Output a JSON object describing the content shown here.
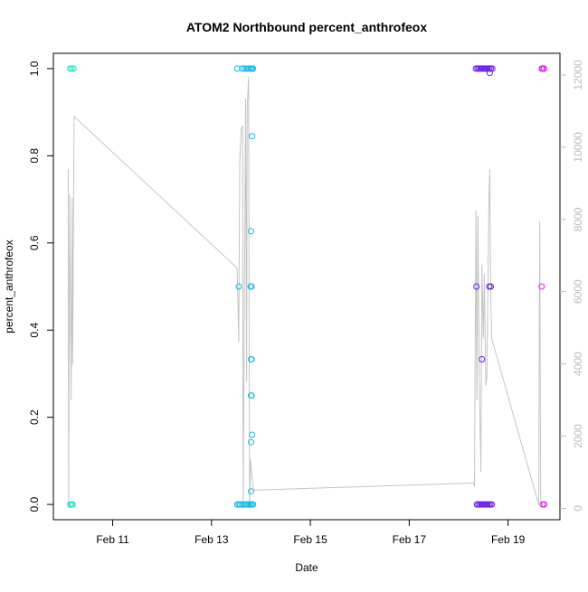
{
  "chart_data": {
    "type": "scatter",
    "title": "ATOM2 Northbound percent_anthrofeox",
    "xlabel": "Date",
    "ylabel": "percent_anthrofeox",
    "y2label": "",
    "x_ticks": [
      "Feb 11",
      "Feb 13",
      "Feb 15",
      "Feb 17",
      "Feb 19"
    ],
    "x_tick_values": [
      11,
      13,
      15,
      17,
      19
    ],
    "xlim": [
      9.8,
      20.05
    ],
    "ylim": [
      -0.035,
      1.035
    ],
    "y_ticks": [
      "0.0",
      "0.2",
      "0.4",
      "0.6",
      "0.8",
      "1.0"
    ],
    "y_tick_values": [
      0,
      0.2,
      0.4,
      0.6,
      0.8,
      1.0
    ],
    "y2lim": [
      -315,
      12600
    ],
    "y2_ticks": [
      "0",
      "2000",
      "4000",
      "6000",
      "8000",
      "10000",
      "12000"
    ],
    "y2_tick_values": [
      0,
      2000,
      4000,
      6000,
      8000,
      10000,
      12000
    ],
    "colors": {
      "axis": "#000000",
      "secondary_axis": "#bbbbbb",
      "line": "#c4c4c4",
      "feb10": "#22e6c0",
      "feb13": "#19b8ea",
      "feb18": "#6a1fe0",
      "feb19": "#e01ee0"
    },
    "series": [
      {
        "color": "#22e6c0",
        "points": [
          [
            10.14,
            1
          ],
          [
            10.17,
            1
          ],
          [
            10.21,
            1
          ],
          [
            10.14,
            0
          ],
          [
            10.17,
            0
          ],
          [
            10.19,
            0
          ]
        ]
      },
      {
        "color": "#19b8ea",
        "points": [
          [
            13.52,
            1
          ],
          [
            13.62,
            1
          ],
          [
            13.66,
            1
          ],
          [
            13.7,
            1
          ],
          [
            13.74,
            1
          ],
          [
            13.77,
            1
          ],
          [
            13.8,
            1
          ],
          [
            13.82,
            1
          ],
          [
            13.84,
            1
          ],
          [
            13.82,
            0.845
          ],
          [
            13.8,
            0.627
          ],
          [
            13.55,
            0.5
          ],
          [
            13.79,
            0.5
          ],
          [
            13.81,
            0.5
          ],
          [
            13.8,
            0.333
          ],
          [
            13.81,
            0.333
          ],
          [
            13.8,
            0.25
          ],
          [
            13.81,
            0.25
          ],
          [
            13.82,
            0.16
          ],
          [
            13.8,
            0.143
          ],
          [
            13.8,
            0.03
          ],
          [
            13.52,
            0
          ],
          [
            13.55,
            0
          ],
          [
            13.58,
            0
          ],
          [
            13.62,
            0
          ],
          [
            13.66,
            0
          ],
          [
            13.7,
            0
          ],
          [
            13.73,
            0
          ],
          [
            13.76,
            0
          ],
          [
            13.79,
            0
          ],
          [
            13.82,
            0
          ],
          [
            13.84,
            0
          ]
        ]
      },
      {
        "color": "#6a1fe0",
        "points": [
          [
            18.35,
            1
          ],
          [
            18.38,
            1
          ],
          [
            18.41,
            1
          ],
          [
            18.44,
            1
          ],
          [
            18.47,
            1
          ],
          [
            18.5,
            1
          ],
          [
            18.53,
            1
          ],
          [
            18.56,
            1
          ],
          [
            18.59,
            1
          ],
          [
            18.62,
            1
          ],
          [
            18.65,
            1
          ],
          [
            18.68,
            1
          ],
          [
            18.63,
            0.99
          ],
          [
            18.36,
            0.5
          ],
          [
            18.62,
            0.5
          ],
          [
            18.65,
            0.5
          ],
          [
            18.47,
            0.333
          ],
          [
            18.37,
            0
          ],
          [
            18.4,
            0
          ],
          [
            18.43,
            0
          ],
          [
            18.46,
            0
          ],
          [
            18.49,
            0
          ],
          [
            18.52,
            0
          ],
          [
            18.55,
            0
          ],
          [
            18.58,
            0
          ],
          [
            18.61,
            0
          ],
          [
            18.64,
            0
          ],
          [
            18.67,
            0
          ]
        ]
      },
      {
        "color": "#e01ee0",
        "points": [
          [
            19.68,
            1
          ],
          [
            19.7,
            1
          ],
          [
            19.73,
            1
          ],
          [
            19.68,
            0.5
          ],
          [
            19.7,
            0
          ],
          [
            19.73,
            0
          ]
        ]
      }
    ],
    "secondary_line": [
      [
        10.1,
        9400
      ],
      [
        10.11,
        0
      ],
      [
        10.13,
        8700
      ],
      [
        10.16,
        3000
      ],
      [
        10.18,
        8600
      ],
      [
        10.19,
        4000
      ],
      [
        10.22,
        10850
      ],
      [
        13.52,
        6650
      ],
      [
        13.55,
        4600
      ],
      [
        13.57,
        9500
      ],
      [
        13.6,
        10500
      ],
      [
        13.63,
        10600
      ],
      [
        13.64,
        0
      ],
      [
        13.69,
        11350
      ],
      [
        13.71,
        3500
      ],
      [
        13.72,
        11050
      ],
      [
        13.75,
        11950
      ],
      [
        13.77,
        0
      ],
      [
        13.79,
        1350
      ],
      [
        13.83,
        650
      ],
      [
        13.85,
        500
      ],
      [
        18.3,
        700
      ],
      [
        18.32,
        600
      ],
      [
        18.35,
        8250
      ],
      [
        18.37,
        3000
      ],
      [
        18.39,
        8100
      ],
      [
        18.42,
        3500
      ],
      [
        18.45,
        1000
      ],
      [
        18.47,
        6750
      ],
      [
        18.5,
        4700
      ],
      [
        18.52,
        6500
      ],
      [
        18.55,
        3400
      ],
      [
        18.57,
        3600
      ],
      [
        18.59,
        5600
      ],
      [
        18.61,
        8200
      ],
      [
        18.63,
        9400
      ],
      [
        18.65,
        5800
      ],
      [
        18.67,
        4700
      ],
      [
        19.62,
        100
      ],
      [
        19.64,
        7950
      ],
      [
        19.66,
        200
      ],
      [
        19.68,
        100
      ]
    ]
  }
}
